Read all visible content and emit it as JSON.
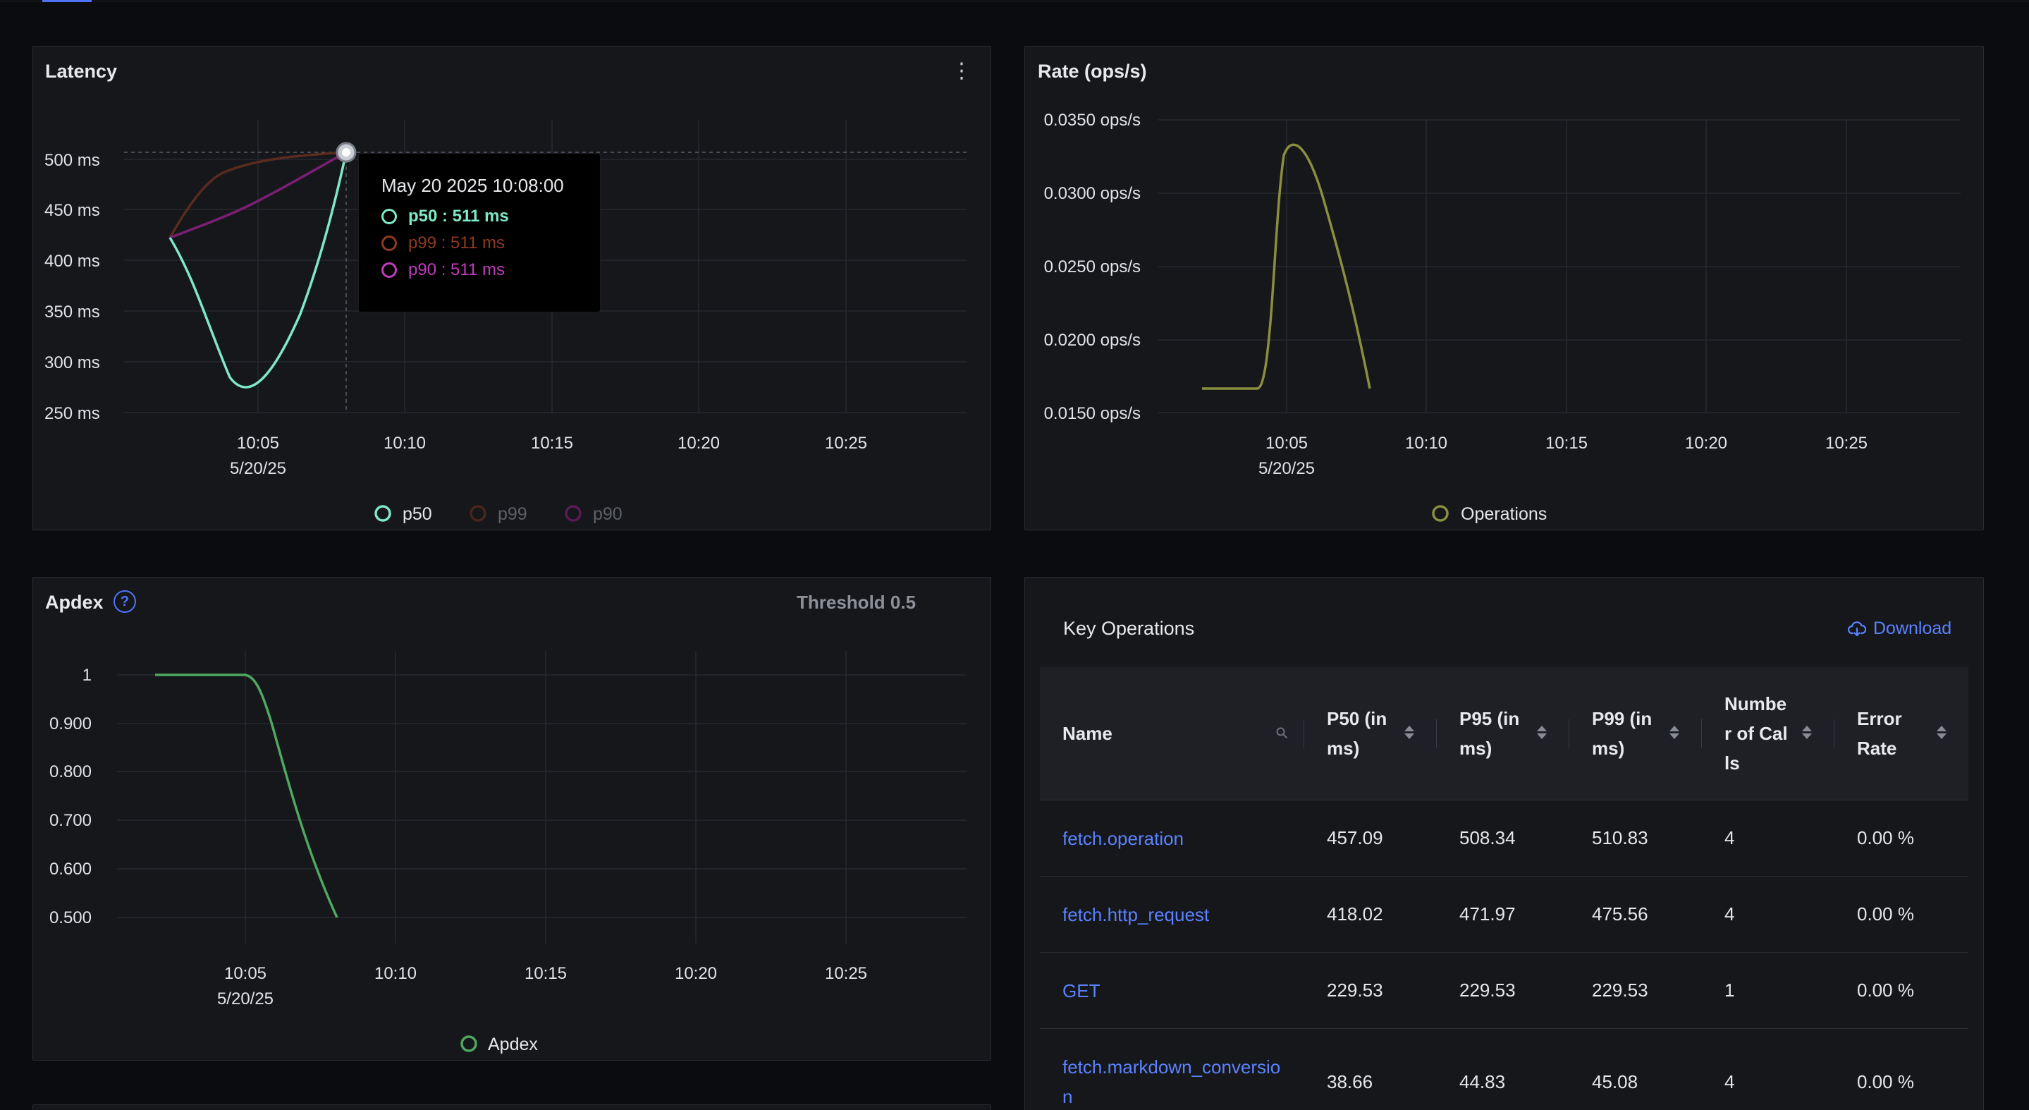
{
  "latency": {
    "title": "Latency",
    "y_ticks": [
      "500 ms",
      "450 ms",
      "400 ms",
      "350 ms",
      "300 ms",
      "250 ms"
    ],
    "x_ticks": [
      "10:05",
      "10:10",
      "10:15",
      "10:20",
      "10:25"
    ],
    "x_date": "5/20/25",
    "legend": [
      "p50",
      "p99",
      "p90"
    ],
    "tooltip": {
      "title": "May 20 2025 10:08:00",
      "rows": [
        "p50 : 511 ms",
        "p99 : 511 ms",
        "p90 : 511 ms"
      ]
    },
    "colors": {
      "p50": "#7fe8c8",
      "p99": "#5a2b1e",
      "p90": "#7b1f73"
    }
  },
  "rate": {
    "title": "Rate (ops/s)",
    "y_ticks": [
      "0.0350 ops/s",
      "0.0300 ops/s",
      "0.0250 ops/s",
      "0.0200 ops/s",
      "0.0150 ops/s"
    ],
    "x_ticks": [
      "10:05",
      "10:10",
      "10:15",
      "10:20",
      "10:25"
    ],
    "x_date": "5/20/25",
    "legend": [
      "Operations"
    ],
    "color": "#8a8f3e"
  },
  "apdex": {
    "title": "Apdex",
    "threshold": "Threshold 0.5",
    "y_ticks": [
      "1",
      "0.900",
      "0.800",
      "0.700",
      "0.600",
      "0.500"
    ],
    "x_ticks": [
      "10:05",
      "10:10",
      "10:15",
      "10:20",
      "10:25"
    ],
    "x_date": "5/20/25",
    "legend": [
      "Apdex"
    ],
    "color": "#4ea860"
  },
  "key_operations": {
    "title": "Key Operations",
    "download_label": "Download",
    "columns": [
      "Name",
      "P50 (in ms)",
      "P95 (in ms)",
      "P99 (in ms)",
      "Number of Calls",
      "Error Rate"
    ],
    "rows": [
      {
        "name": "fetch.operation",
        "p50": "457.09",
        "p95": "508.34",
        "p99": "510.83",
        "calls": "4",
        "error": "0.00 %"
      },
      {
        "name": "fetch.http_request",
        "p50": "418.02",
        "p95": "471.97",
        "p99": "475.56",
        "calls": "4",
        "error": "0.00 %"
      },
      {
        "name": "GET",
        "p50": "229.53",
        "p95": "229.53",
        "p99": "229.53",
        "calls": "1",
        "error": "0.00 %"
      },
      {
        "name": "fetch.markdown_conversion",
        "p50": "38.66",
        "p95": "44.83",
        "p99": "45.08",
        "calls": "4",
        "error": "0.00 %"
      }
    ]
  },
  "chart_data": [
    {
      "type": "line",
      "title": "Latency",
      "x": [
        "10:02",
        "10:04",
        "10:08"
      ],
      "series": [
        {
          "name": "p50",
          "values": [
            420,
            285,
            511
          ]
        },
        {
          "name": "p99",
          "values": [
            420,
            480,
            511
          ]
        },
        {
          "name": "p90",
          "values": [
            420,
            450,
            511
          ]
        }
      ],
      "ylim": [
        250,
        520
      ]
    },
    {
      "type": "line",
      "title": "Rate (ops/s)",
      "x": [
        "10:02",
        "10:04",
        "10:05",
        "10:08"
      ],
      "series": [
        {
          "name": "Operations",
          "values": [
            0.0167,
            0.0167,
            0.0333,
            0.0167
          ]
        }
      ],
      "ylim": [
        0.015,
        0.035
      ]
    },
    {
      "type": "line",
      "title": "Apdex",
      "x": [
        "10:02",
        "10:05",
        "10:08"
      ],
      "series": [
        {
          "name": "Apdex",
          "values": [
            1,
            1,
            0.5
          ]
        }
      ],
      "ylim": [
        0.5,
        1
      ]
    }
  ]
}
